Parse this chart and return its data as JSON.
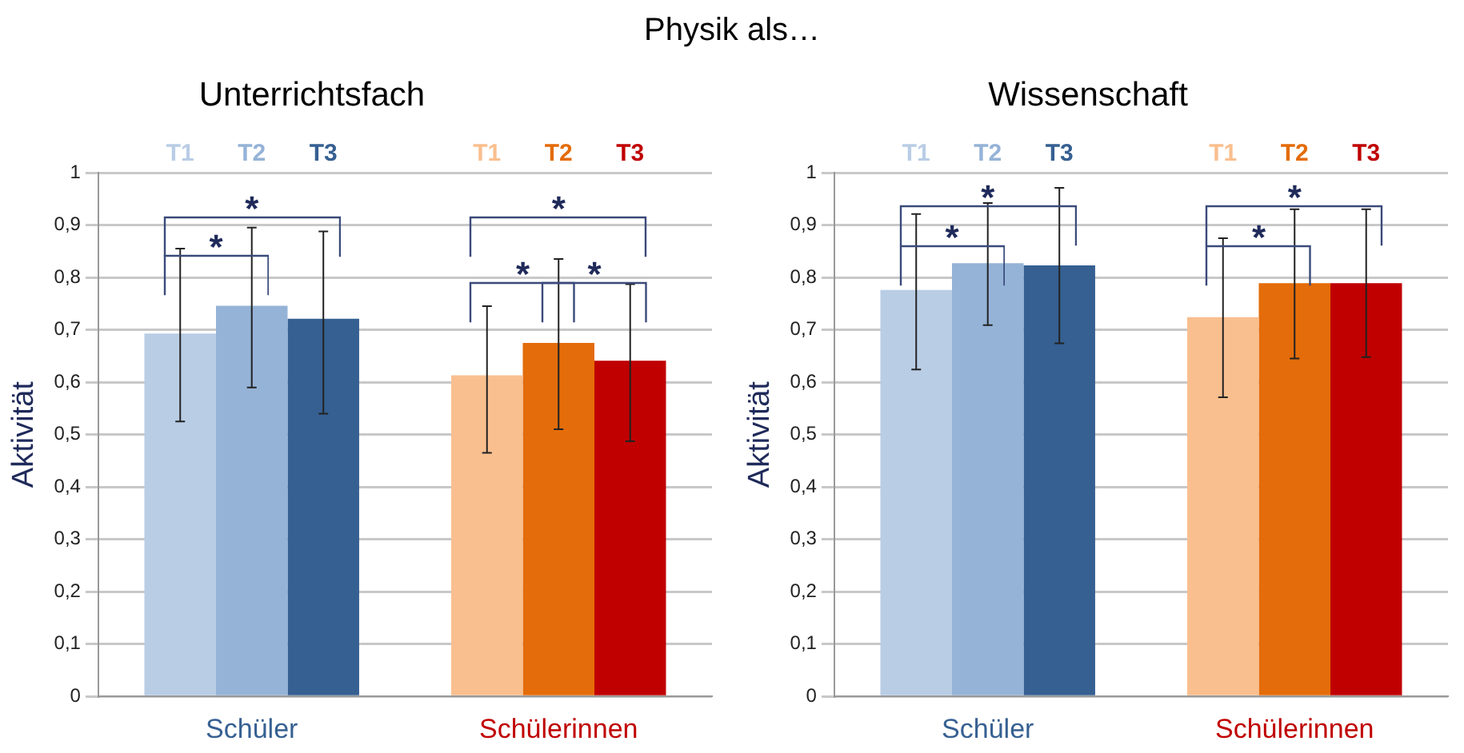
{
  "chart_data": [
    {
      "type": "bar",
      "title": "Unterrichtsfach",
      "ylabel": "Aktivität",
      "categories": [
        "Schüler",
        "Schülerinnen"
      ],
      "series": [
        {
          "name": "T1",
          "colors": [
            "#b9cde5",
            "#f9bf8f"
          ],
          "values": [
            0.693,
            0.613
          ],
          "errors": [
            [
              0.525,
              0.855
            ],
            [
              0.465,
              0.745
            ]
          ]
        },
        {
          "name": "T2",
          "colors": [
            "#95b3d7",
            "#e46c0a"
          ],
          "values": [
            0.746,
            0.675
          ],
          "errors": [
            [
              0.59,
              0.895
            ],
            [
              0.51,
              0.835
            ]
          ]
        },
        {
          "name": "T3",
          "colors": [
            "#366092",
            "#c00000"
          ],
          "values": [
            0.721,
            0.641
          ],
          "errors": [
            [
              0.54,
              0.888
            ],
            [
              0.487,
              0.787
            ]
          ]
        }
      ],
      "ylim": [
        0,
        1
      ],
      "yticks": [
        {
          "value": 0,
          "label": "0"
        },
        {
          "value": 0.1,
          "label": "0,1"
        },
        {
          "value": 0.2,
          "label": "0,2"
        },
        {
          "value": 0.3,
          "label": "0,3"
        },
        {
          "value": 0.4,
          "label": "0,4"
        },
        {
          "value": 0.5,
          "label": "0,5"
        },
        {
          "value": 0.6,
          "label": "0,6"
        },
        {
          "value": 0.7,
          "label": "0,7"
        },
        {
          "value": 0.8,
          "label": "0,8"
        },
        {
          "value": 0.9,
          "label": "0,9"
        },
        {
          "value": 1,
          "label": "1"
        }
      ],
      "grid": "y",
      "legend": false,
      "annotations": [
        "Physik als…",
        "*",
        "*",
        "*",
        "*",
        "*"
      ]
    },
    {
      "type": "bar",
      "title": "Wissenschaft",
      "ylabel": "Aktivität",
      "categories": [
        "Schüler",
        "Schülerinnen"
      ],
      "series": [
        {
          "name": "T1",
          "colors": [
            "#b9cde5",
            "#f9bf8f"
          ],
          "values": [
            0.776,
            0.724
          ],
          "errors": [
            [
              0.624,
              0.921
            ],
            [
              0.571,
              0.875
            ]
          ]
        },
        {
          "name": "T2",
          "colors": [
            "#95b3d7",
            "#e46c0a"
          ],
          "values": [
            0.827,
            0.789
          ],
          "errors": [
            [
              0.709,
              0.942
            ],
            [
              0.645,
              0.93
            ]
          ]
        },
        {
          "name": "T3",
          "colors": [
            "#366092",
            "#c00000"
          ],
          "values": [
            0.823,
            0.789
          ],
          "errors": [
            [
              0.674,
              0.971
            ],
            [
              0.648,
              0.93
            ]
          ]
        }
      ],
      "ylim": [
        0,
        1
      ],
      "yticks": [
        {
          "value": 0,
          "label": "0"
        },
        {
          "value": 0.1,
          "label": "0,1"
        },
        {
          "value": 0.2,
          "label": "0,2"
        },
        {
          "value": 0.3,
          "label": "0,3"
        },
        {
          "value": 0.4,
          "label": "0,4"
        },
        {
          "value": 0.5,
          "label": "0,5"
        },
        {
          "value": 0.6,
          "label": "0,6"
        },
        {
          "value": 0.7,
          "label": "0,7"
        },
        {
          "value": 0.8,
          "label": "0,8"
        },
        {
          "value": 0.9,
          "label": "0,9"
        },
        {
          "value": 1,
          "label": "1"
        }
      ],
      "grid": "y",
      "legend": false,
      "annotations": [
        "*",
        "*",
        "*",
        "*"
      ]
    }
  ]
}
